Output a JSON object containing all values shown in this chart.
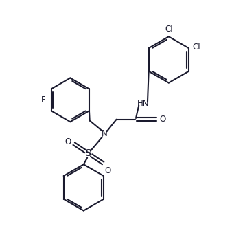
{
  "bg_color": "#ffffff",
  "line_color": "#1a1a2e",
  "line_width": 1.5,
  "font_size": 8.5,
  "figsize": [
    3.57,
    3.58
  ],
  "dpi": 100,
  "xlim": [
    0,
    10
  ],
  "ylim": [
    0,
    10
  ]
}
